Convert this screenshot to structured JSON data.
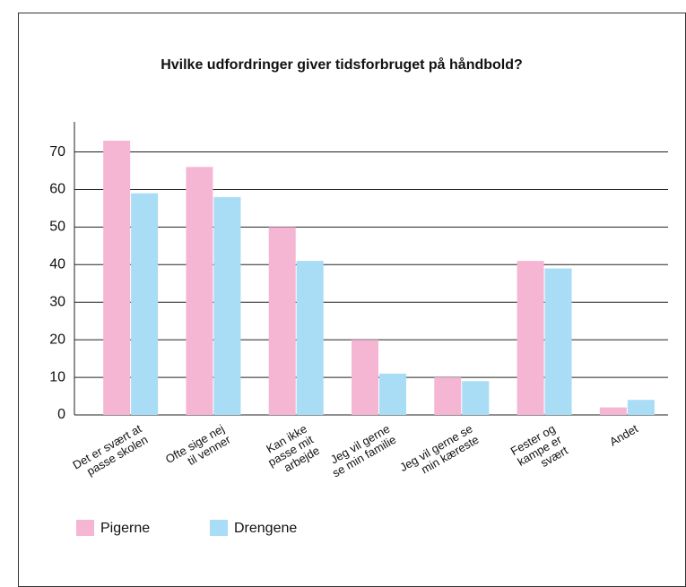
{
  "chart_data": {
    "type": "bar",
    "title": "Hvilke udfordringer giver tidsforbruget på håndbold?",
    "categories": [
      [
        "Det er svært at",
        "passe skolen"
      ],
      [
        "Ofte sige nej",
        "til venner"
      ],
      [
        "Kan ikke",
        "passe mit",
        "arbejde"
      ],
      [
        "Jeg vil gerne",
        "se min familie"
      ],
      [
        "Jeg vil gerne se",
        "min kæreste"
      ],
      [
        "Fester og",
        "kampe er",
        "svært"
      ],
      [
        "Andet"
      ]
    ],
    "series": [
      {
        "name": "Pigerne",
        "color": "#f4b6d3",
        "values": [
          73,
          66,
          50,
          20,
          10,
          41,
          2
        ]
      },
      {
        "name": "Drengene",
        "color": "#a9dcf5",
        "values": [
          59,
          58,
          41,
          11,
          9,
          39,
          4
        ]
      }
    ],
    "ylim": [
      0,
      78
    ],
    "yticks": [
      0,
      10,
      20,
      30,
      40,
      50,
      60,
      70
    ],
    "grid": true
  }
}
